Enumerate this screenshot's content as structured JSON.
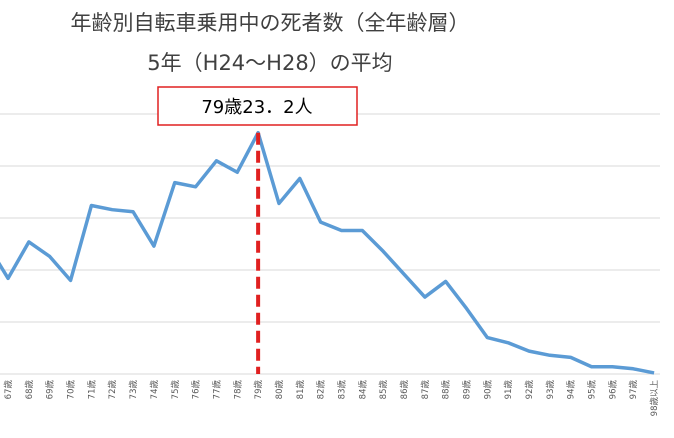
{
  "chart_data": {
    "type": "line",
    "title": "年齢別自転車乗用中の死者数（全年齢層）",
    "subtitle": "5年（H24～H28）の平均",
    "annotation": "79歳23．2人",
    "categories": [
      null,
      "67歳",
      "68歳",
      "69歳",
      "70歳",
      "71歳",
      "72歳",
      "73歳",
      "74歳",
      "75歳",
      "76歳",
      "77歳",
      "78歳",
      "79歳",
      "80歳",
      "81歳",
      "82歳",
      "83歳",
      "84歳",
      "85歳",
      "86歳",
      "87歳",
      "88歳",
      "89歳",
      "90歳",
      "91歳",
      "92歳",
      "93歳",
      "94歳",
      "95歳",
      "96歳",
      "97歳",
      "98歳以上"
    ],
    "series": [
      {
        "color": "#5b9bd5",
        "values": [
          12.5,
          9.2,
          12.7,
          11.3,
          9.0,
          16.2,
          15.8,
          15.6,
          12.3,
          18.4,
          18.0,
          20.5,
          19.4,
          23.2,
          16.4,
          18.8,
          14.6,
          13.8,
          13.8,
          11.8,
          9.6,
          7.4,
          8.9,
          6.3,
          3.5,
          3.0,
          2.2,
          1.8,
          1.6,
          0.7,
          0.7,
          0.5,
          0.1
        ]
      }
    ],
    "ylim": [
      0,
      25
    ],
    "yticks": [
      0,
      5,
      10,
      15,
      20,
      25
    ],
    "grid": true,
    "highlight_index": 13,
    "annotation_color": "#e02020"
  }
}
